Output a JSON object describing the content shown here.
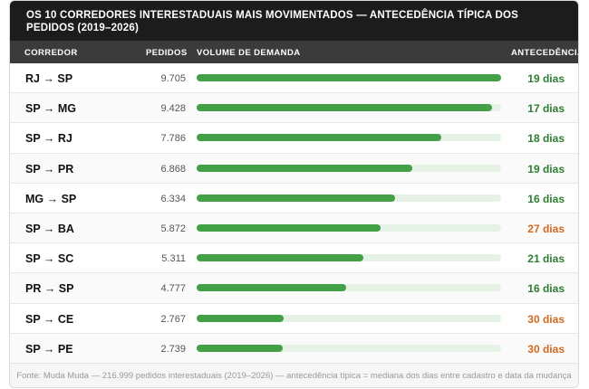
{
  "title": "OS 10 CORREDORES INTERESTADUAIS MAIS MOVIMENTADOS — ANTECEDÊNCIA TÍPICA DOS PEDIDOS (2019–2026)",
  "columns": {
    "corridor": "CORREDOR",
    "orders": "PEDIDOS",
    "volume": "VOLUME DE DEMANDA",
    "lead": "ANTECEDÊNCIA"
  },
  "colors": {
    "bar": "#43a047",
    "lead_normal": "#2e7d32",
    "lead_high": "#d2691e"
  },
  "chart_data": {
    "type": "bar",
    "title": "OS 10 CORREDORES INTERESTADUAIS MAIS MOVIMENTADOS — ANTECEDÊNCIA TÍPICA DOS PEDIDOS (2019–2026)",
    "categories": [
      "RJ → SP",
      "SP → MG",
      "SP → RJ",
      "SP → PR",
      "MG → SP",
      "SP → BA",
      "SP → SC",
      "PR → SP",
      "SP → CE",
      "SP → PE"
    ],
    "orders": [
      9705,
      9428,
      7786,
      6868,
      6334,
      5872,
      5311,
      4777,
      2767,
      2739
    ],
    "orders_labels": [
      "9.705",
      "9.428",
      "7.786",
      "6.868",
      "6.334",
      "5.872",
      "5.311",
      "4.777",
      "2.767",
      "2.739"
    ],
    "lead_labels": [
      "19 dias",
      "17 dias",
      "18 dias",
      "19 dias",
      "16 dias",
      "27 dias",
      "21 dias",
      "16 dias",
      "30 dias",
      "30 dias"
    ],
    "lead_days": [
      19,
      17,
      18,
      19,
      16,
      27,
      21,
      16,
      30,
      30
    ],
    "lead_highlight": [
      false,
      false,
      false,
      false,
      false,
      true,
      false,
      false,
      true,
      true
    ],
    "xlim": [
      0,
      9705
    ]
  },
  "footer": "Fonte: Muda Muda — 216.999 pedidos interestaduais (2019–2026) — antecedência típica = mediana dos dias entre cadastro e data da mudança"
}
